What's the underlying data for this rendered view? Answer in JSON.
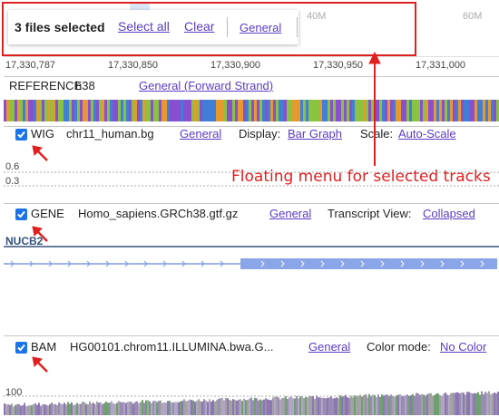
{
  "menu": {
    "count": "3 files selected",
    "select_all": "Select all",
    "clear": "Clear",
    "general": "General"
  },
  "background_ruler": [
    "40M",
    "60M"
  ],
  "ruler": [
    "17,330,787",
    "17,330,850",
    "17,330,900",
    "17,330,950",
    "17,331,000"
  ],
  "reference": {
    "name": "REFERENCE",
    "genome": "h38",
    "menu": "General (Forward Strand)"
  },
  "tracks": [
    {
      "type": "WIG",
      "file": "chr11_human.bg",
      "menu": "General",
      "option_label": "Display:",
      "option_value": "Bar Graph",
      "extra_label": "Scale:",
      "extra_value": "Auto-Scale",
      "axis_labels": [
        "0.6",
        "0.3"
      ]
    },
    {
      "type": "GENE",
      "file": "Homo_sapiens.GRCh38.gtf.gz",
      "menu": "General",
      "option_label": "Transcript View:",
      "option_value": "Collapsed",
      "feature": "NUCB2"
    },
    {
      "type": "BAM",
      "file": "HG00101.chrom11.ILLUMINA.bwa.G...",
      "menu": "General",
      "option_label": "Color mode:",
      "option_value": "No Color",
      "axis_labels": [
        "100"
      ]
    }
  ],
  "annotation": "Floating menu for selected tracks"
}
